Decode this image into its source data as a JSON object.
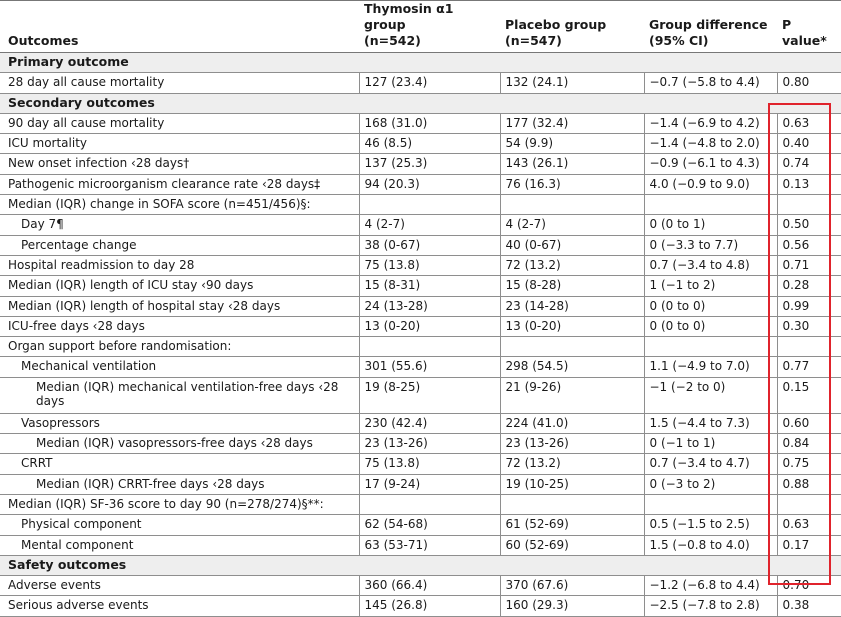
{
  "headers": {
    "outcomes": "Outcomes",
    "thymosin_a": "Thymosin α1 group",
    "thymosin_b": "(n=542)",
    "placebo_a": "Placebo group",
    "placebo_b": "(n=547)",
    "diff_a": "Group difference",
    "diff_b": "(95% CI)",
    "pvalue": "P value*"
  },
  "rows": [
    {
      "type": "section",
      "label": "Primary outcome"
    },
    {
      "label": "28 day all cause mortality",
      "t": "127 (23.4)",
      "p": "132 (24.1)",
      "d": "−0.7 (−5.8 to 4.4)",
      "pv": "0.80"
    },
    {
      "type": "section",
      "label": "Secondary outcomes"
    },
    {
      "label": "90 day all cause mortality",
      "t": "168 (31.0)",
      "p": "177 (32.4)",
      "d": "−1.4 (−6.9 to 4.2)",
      "pv": "0.63"
    },
    {
      "label": "ICU mortality",
      "t": "46 (8.5)",
      "p": "54 (9.9)",
      "d": "−1.4 (−4.8 to 2.0)",
      "pv": "0.40"
    },
    {
      "label": "New onset infection ‹28 days†",
      "t": "137 (25.3)",
      "p": "143 (26.1)",
      "d": "−0.9 (−6.1 to 4.3)",
      "pv": "0.74"
    },
    {
      "label": "Pathogenic microorganism clearance rate ‹28 days‡",
      "t": "94 (20.3)",
      "p": "76 (16.3)",
      "d": "4.0 (−0.9 to 9.0)",
      "pv": "0.13"
    },
    {
      "label": "Median (IQR) change in SOFA score (n=451/456)§:",
      "t": "",
      "p": "",
      "d": "",
      "pv": ""
    },
    {
      "indent": 1,
      "label": "Day 7¶",
      "t": "4 (2-7)",
      "p": "4 (2-7)",
      "d": "0 (0 to 1)",
      "pv": "0.50"
    },
    {
      "indent": 1,
      "label": "Percentage change",
      "t": "38 (0-67)",
      "p": "40 (0-67)",
      "d": "0 (−3.3 to 7.7)",
      "pv": "0.56"
    },
    {
      "label": "Hospital readmission to day 28",
      "t": "75 (13.8)",
      "p": "72 (13.2)",
      "d": "0.7 (−3.4 to 4.8)",
      "pv": "0.71"
    },
    {
      "label": "Median (IQR) length of ICU stay ‹90 days",
      "t": "15 (8-31)",
      "p": "15 (8-28)",
      "d": "1 (−1 to 2)",
      "pv": "0.28"
    },
    {
      "label": "Median (IQR) length of hospital stay ‹28 days",
      "t": "24 (13-28)",
      "p": "23 (14-28)",
      "d": "0 (0 to 0)",
      "pv": "0.99"
    },
    {
      "label": "ICU-free days ‹28 days",
      "t": "13 (0-20)",
      "p": "13 (0-20)",
      "d": "0 (0 to 0)",
      "pv": "0.30"
    },
    {
      "label": "Organ support before randomisation:",
      "t": "",
      "p": "",
      "d": "",
      "pv": ""
    },
    {
      "indent": 1,
      "label": "Mechanical ventilation",
      "t": "301 (55.6)",
      "p": "298 (54.5)",
      "d": "1.1 (−4.9 to 7.0)",
      "pv": "0.77"
    },
    {
      "indent": 2,
      "tall": true,
      "label": "Median (IQR) mechanical ventilation-free days ‹28 days",
      "t": "19 (8-25)",
      "p": "21 (9-26)",
      "d": "−1 (−2 to 0)",
      "pv": "0.15"
    },
    {
      "indent": 1,
      "label": "Vasopressors",
      "t": "230 (42.4)",
      "p": "224 (41.0)",
      "d": "1.5 (−4.4 to 7.3)",
      "pv": "0.60"
    },
    {
      "indent": 2,
      "label": "Median (IQR) vasopressors-free days ‹28 days",
      "t": "23 (13-26)",
      "p": "23 (13-26)",
      "d": "0 (−1 to 1)",
      "pv": "0.84"
    },
    {
      "indent": 1,
      "label": "CRRT",
      "t": "75 (13.8)",
      "p": "72 (13.2)",
      "d": "0.7 (−3.4 to 4.7)",
      "pv": "0.75"
    },
    {
      "indent": 2,
      "label": "Median (IQR) CRRT-free days ‹28 days",
      "t": "17 (9-24)",
      "p": "19 (10-25)",
      "d": "0 (−3 to 2)",
      "pv": "0.88"
    },
    {
      "label": "Median (IQR) SF-36 score to day 90 (n=278/274)§**:",
      "t": "",
      "p": "",
      "d": "",
      "pv": ""
    },
    {
      "indent": 1,
      "label": "Physical component",
      "t": "62 (54-68)",
      "p": "61 (52-69)",
      "d": "0.5 (−1.5 to 2.5)",
      "pv": "0.63"
    },
    {
      "indent": 1,
      "label": "Mental component",
      "t": "63 (53-71)",
      "p": "60 (52-69)",
      "d": "1.5 (−0.8 to 4.0)",
      "pv": "0.17"
    },
    {
      "type": "section",
      "label": "Safety outcomes"
    },
    {
      "label": "Adverse events",
      "t": "360 (66.4)",
      "p": "370 (67.6)",
      "d": "−1.2 (−6.8 to 4.4)",
      "pv": "0.70"
    },
    {
      "label": "Serious adverse events",
      "t": "145 (26.8)",
      "p": "160 (29.3)",
      "d": "−2.5 (−7.8 to 2.8)",
      "pv": "0.38"
    }
  ],
  "highlight_color": "#e0232c"
}
